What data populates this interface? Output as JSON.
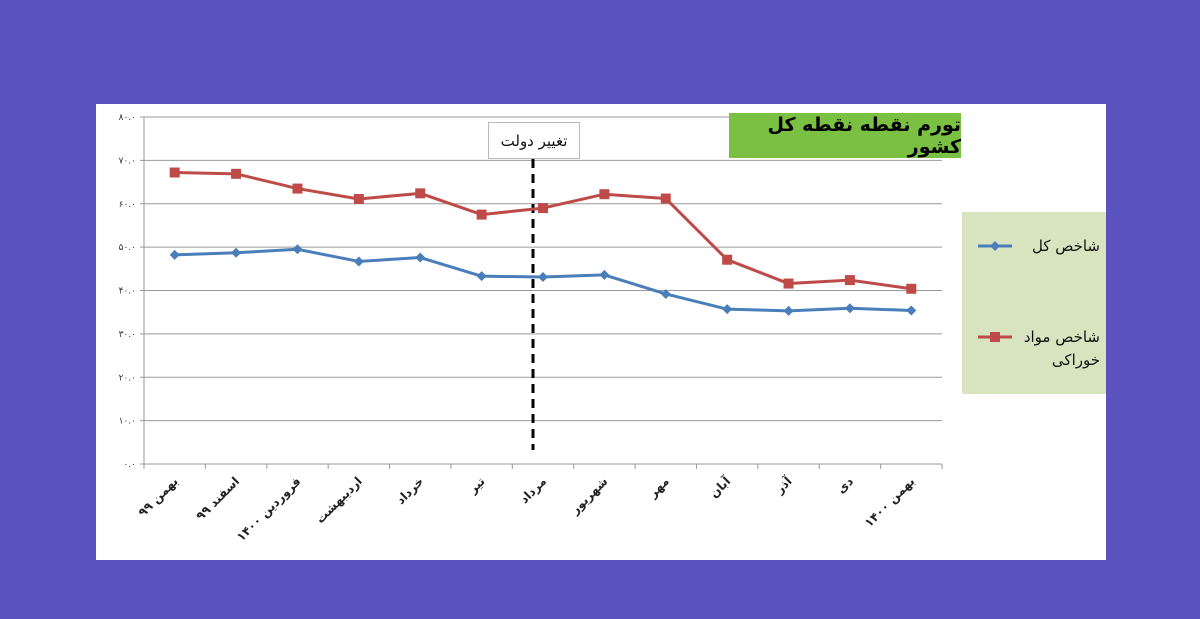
{
  "chart_data": {
    "type": "line",
    "title": "تورم نقطه نقطه کل کشور",
    "categories": [
      "بهمن ۹۹",
      "اسفند ۹۹",
      "فروردین ۱۴۰۰",
      "اردیبهشت",
      "خرداد",
      "تیر",
      "مرداد",
      "شهریور",
      "مهر",
      "آبان",
      "آذر",
      "دی",
      "بهمن ۱۴۰۰"
    ],
    "y_tick_labels": [
      "۰.۰",
      "۱۰.۰",
      "۲۰.۰",
      "۳۰.۰",
      "۴۰.۰",
      "۵۰.۰",
      "۶۰.۰",
      "۷۰.۰",
      "۸۰.۰"
    ],
    "ylim": [
      0,
      80
    ],
    "ytick_step": 10,
    "grid": true,
    "legend_position": "right",
    "series": [
      {
        "name": "شاخص کل",
        "color": "#4a7ebb",
        "marker": "diamond",
        "values": [
          48.2,
          48.7,
          49.5,
          46.7,
          47.6,
          43.3,
          43.1,
          43.6,
          39.2,
          35.7,
          35.3,
          35.9,
          35.4
        ]
      },
      {
        "name": "شاخص مواد خوراکی",
        "color": "#be4b48",
        "marker": "square",
        "values": [
          67.2,
          66.9,
          63.5,
          61.1,
          62.4,
          57.5,
          59.0,
          62.2,
          61.2,
          47.1,
          41.6,
          42.4,
          40.4
        ]
      }
    ],
    "annotations": [
      {
        "text": "تغییر دولت",
        "at_category": "مرداد",
        "style": "dashed-vertical"
      }
    ]
  }
}
